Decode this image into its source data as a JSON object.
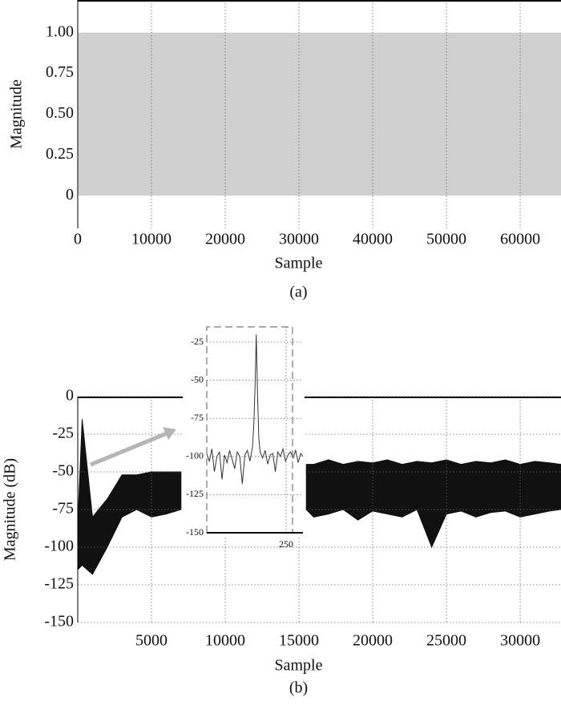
{
  "chart_data": [
    {
      "type": "area",
      "ylabel": "Magnitude",
      "xlabel": "Sample",
      "caption": "(a)",
      "x": [
        0,
        65536
      ],
      "values": [
        1,
        1
      ],
      "color": "#d0d0d0",
      "xlim": [
        0,
        65536
      ],
      "ylim": [
        -0.2,
        1.2
      ],
      "xticks": [
        0,
        10000,
        20000,
        30000,
        40000,
        50000,
        60000
      ],
      "yticks": [
        0,
        0.25,
        {
          "value": 0.5,
          "label": "0.50"
        },
        0.75,
        {
          "value": 1,
          "label": "1.00"
        }
      ],
      "grid": "x"
    },
    {
      "type": "band",
      "ylabel": "Magnitude (dB)",
      "xlabel": "Sample",
      "caption": "(b)",
      "x": [
        0,
        300,
        1000,
        2000,
        3000,
        4000,
        5000,
        6000,
        7000,
        8000,
        9000,
        10000,
        11000,
        12000,
        13000,
        14000,
        15000,
        15500,
        16000,
        17000,
        18000,
        19000,
        20000,
        21000,
        22000,
        23000,
        24000,
        25000,
        26000,
        27000,
        28000,
        29000,
        30000,
        31000,
        32000,
        32768
      ],
      "high": [
        -85,
        -15,
        -80,
        -68,
        -52,
        -52,
        -50,
        -50,
        -50,
        null,
        null,
        null,
        null,
        null,
        null,
        null,
        null,
        -45,
        -45,
        -42,
        -45,
        -43,
        -44,
        -42,
        -45,
        -43,
        -44,
        -42,
        -45,
        -43,
        -44,
        -42,
        -45,
        -43,
        -44,
        -45
      ],
      "low": [
        -115,
        -112,
        -118,
        -100,
        -80,
        -75,
        -80,
        -78,
        -75,
        null,
        null,
        null,
        null,
        null,
        null,
        null,
        null,
        -75,
        -80,
        -78,
        -75,
        -82,
        -76,
        -78,
        -80,
        -75,
        -100,
        -78,
        -76,
        -80,
        -77,
        -76,
        -80,
        -78,
        -76,
        -75
      ],
      "color": "#111111",
      "xlim": [
        0,
        32768
      ],
      "ylim": [
        -150,
        0
      ],
      "xticks": [
        5000,
        10000,
        15000,
        20000,
        25000,
        30000
      ],
      "yticks": [
        -150,
        -125,
        -100,
        -75,
        -50,
        -25,
        0
      ],
      "grid": "xy"
    },
    {
      "type": "line",
      "color": "#333333",
      "x": [
        0,
        8,
        16,
        24,
        32,
        40,
        48,
        56,
        64,
        72,
        80,
        88,
        96,
        104,
        112,
        120,
        128,
        136,
        144,
        148,
        152,
        156,
        160,
        164,
        168,
        176,
        184,
        192,
        200,
        208,
        216,
        224,
        232,
        240,
        248,
        256,
        264,
        272,
        280,
        288,
        296,
        303
      ],
      "values": [
        -98,
        -103,
        -95,
        -110,
        -100,
        -97,
        -115,
        -99,
        -104,
        -96,
        -102,
        -108,
        -97,
        -100,
        -118,
        -99,
        -96,
        -103,
        -94,
        -80,
        -55,
        -20,
        -60,
        -88,
        -97,
        -101,
        -96,
        -105,
        -99,
        -98,
        -110,
        -97,
        -100,
        -95,
        -103,
        -99,
        -97,
        -101,
        -96,
        -104,
        -98,
        -100
      ],
      "xlim": [
        0,
        303
      ],
      "ylim": [
        -150,
        -15
      ],
      "xticks": [
        250
      ],
      "yticks": [
        -150,
        -125,
        -100,
        -75,
        -50,
        -25
      ],
      "grid": "xy"
    }
  ]
}
